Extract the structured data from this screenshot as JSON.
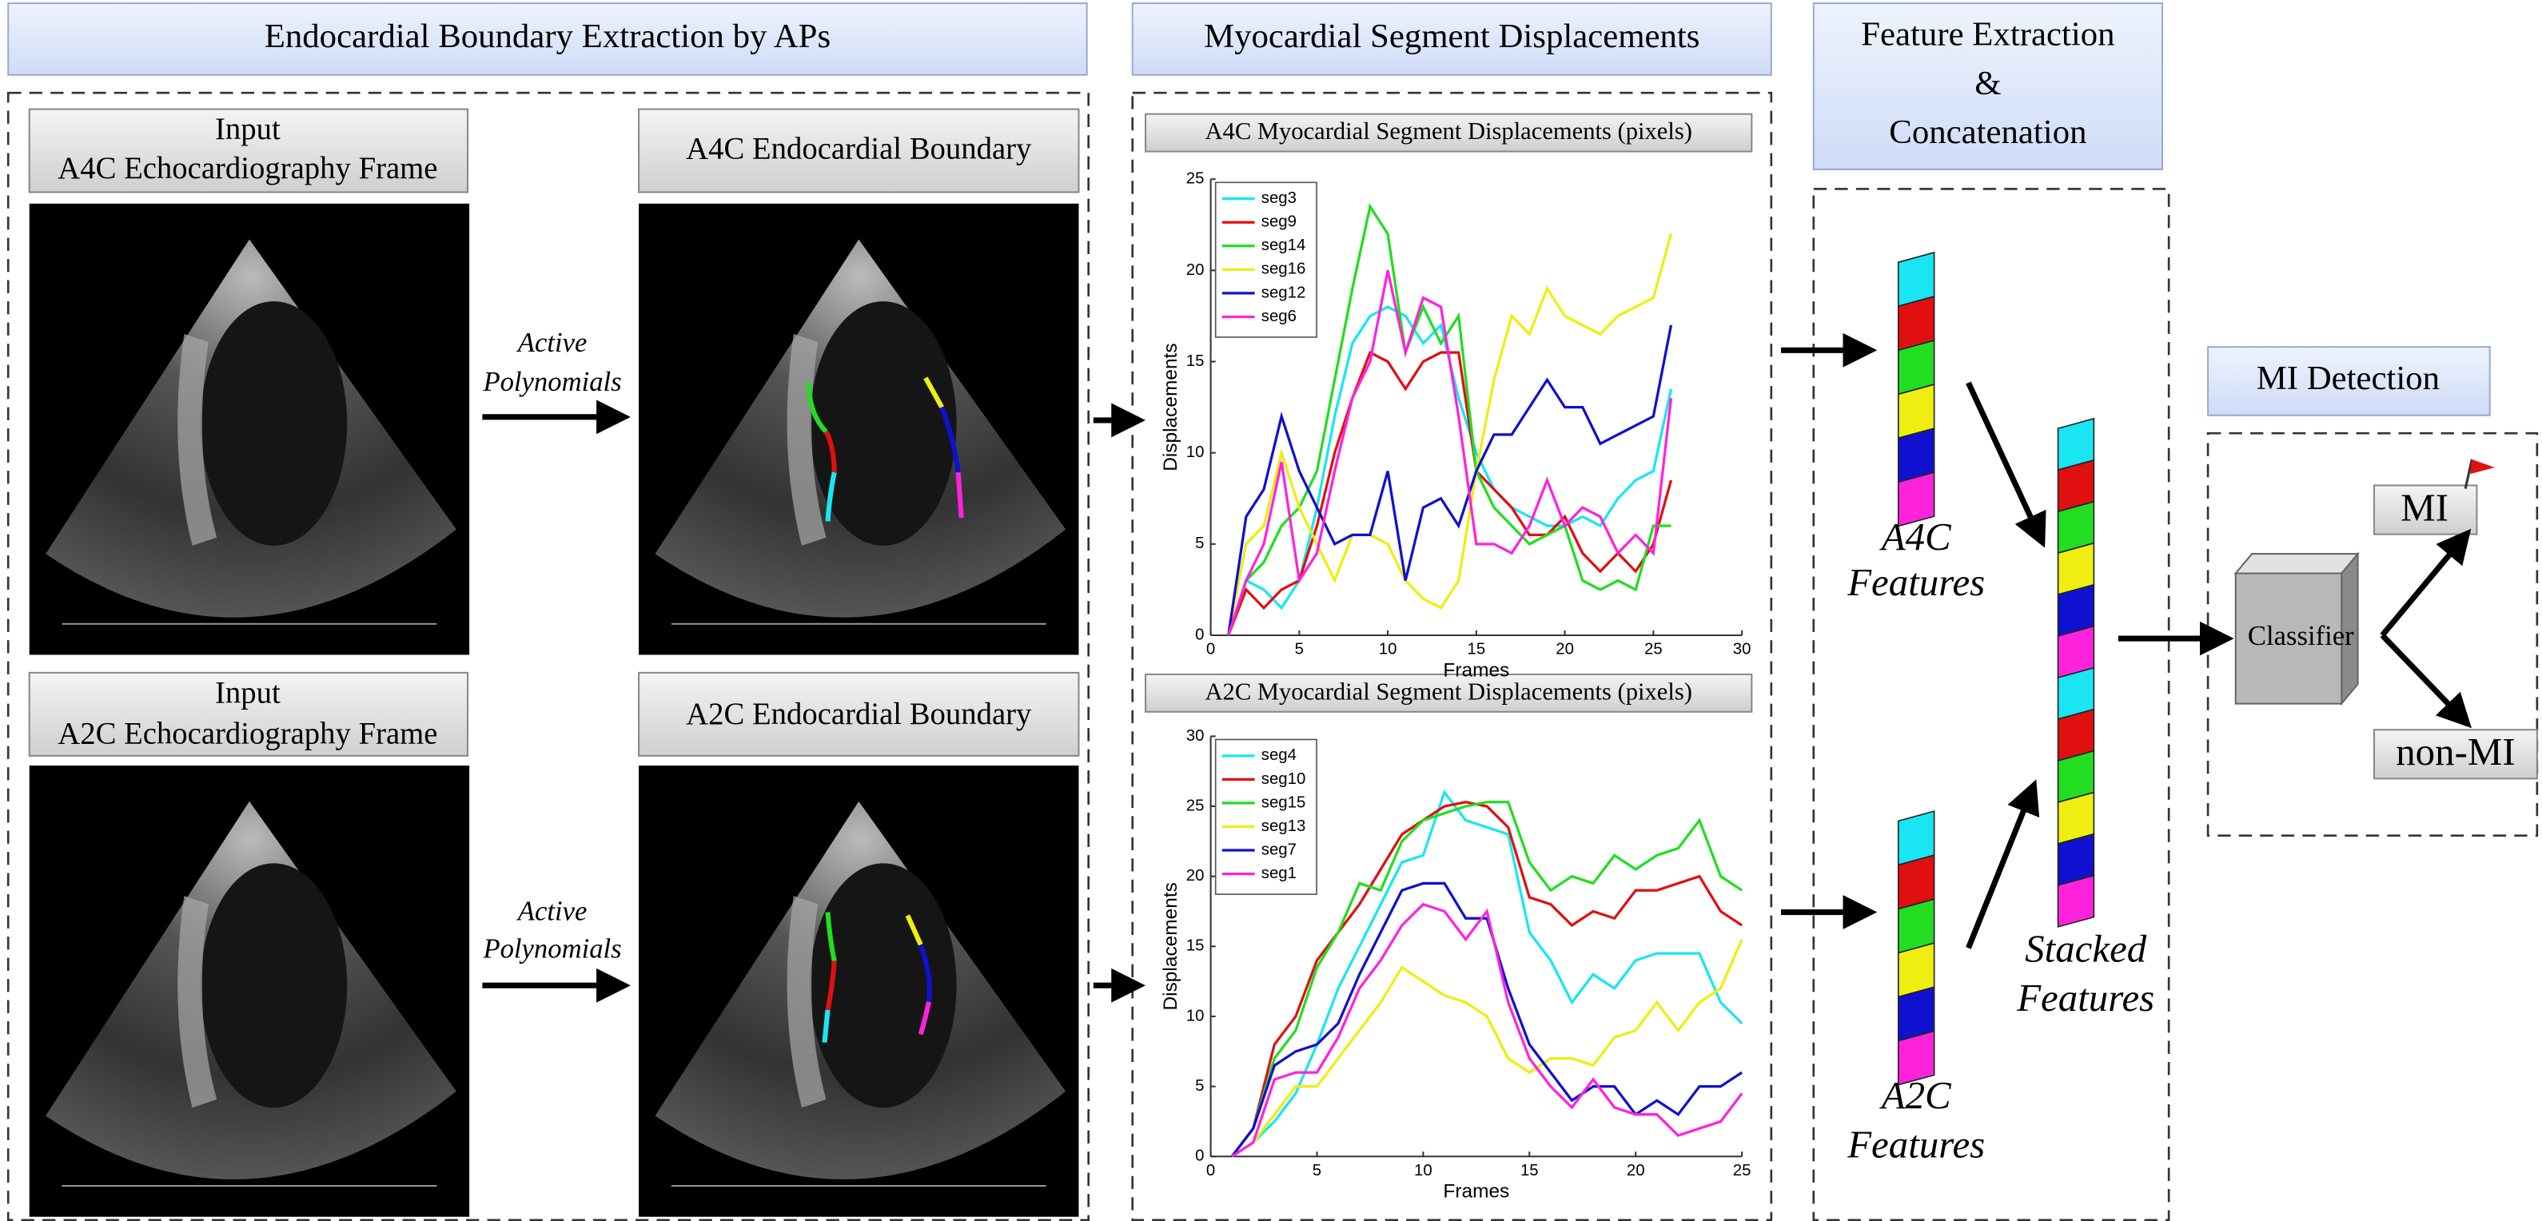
{
  "headers": {
    "boundary": "Endocardial Boundary Extraction by APs",
    "displacements": "Myocardial Segment Displacements",
    "features": [
      "Feature Extraction",
      "&",
      "Concatenation"
    ],
    "detection": "MI Detection"
  },
  "views": [
    {
      "input_label": [
        "Input",
        "A4C Echocardiography Frame"
      ],
      "boundary_label": "A4C Endocardial Boundary",
      "method": [
        "Active",
        "Polynomials"
      ],
      "features_label": [
        "A4C",
        "Features"
      ]
    },
    {
      "input_label": [
        "Input",
        "A2C Echocardiography Frame"
      ],
      "boundary_label": "A2C Endocardial Boundary",
      "method": [
        "Active",
        "Polynomials"
      ],
      "features_label": [
        "A2C",
        "Features"
      ]
    }
  ],
  "stacked_label": [
    "Stacked",
    "Features"
  ],
  "classifier": "Classifier",
  "outputs": [
    "MI",
    "non-MI"
  ],
  "charts": [
    {
      "type": "line",
      "title": "A4C Myocardial Segment Displacements (pixels)",
      "xlabel": "Frames",
      "ylabel": "Displacements",
      "x": [
        1,
        2,
        3,
        4,
        5,
        6,
        7,
        8,
        9,
        10,
        11,
        12,
        13,
        14,
        15,
        16,
        17,
        18,
        19,
        20,
        21,
        22,
        23,
        24,
        25,
        26
      ],
      "xlim": [
        0,
        30
      ],
      "xticks": [
        0,
        5,
        10,
        15,
        20,
        25,
        30
      ],
      "ylim": [
        0,
        25
      ],
      "yticks": [
        0,
        5,
        10,
        15,
        20,
        25
      ],
      "legend": "upper left",
      "series": [
        {
          "name": "seg3",
          "color": "#19e6f2",
          "values": [
            0,
            3,
            2.5,
            1.5,
            3,
            7,
            12,
            16,
            17.5,
            18,
            17.5,
            16,
            17,
            13,
            10,
            8,
            7,
            6.5,
            6,
            6,
            6.5,
            6,
            7.5,
            8.5,
            9,
            13.5
          ]
        },
        {
          "name": "seg9",
          "color": "#e01010",
          "values": [
            0,
            2.5,
            1.5,
            2.5,
            3,
            6,
            10,
            13,
            15.5,
            15,
            13.5,
            15,
            15.5,
            15.5,
            9,
            8,
            7,
            5.5,
            5.5,
            6.5,
            4.5,
            3.5,
            4.5,
            3.5,
            5,
            8.5
          ]
        },
        {
          "name": "seg14",
          "color": "#22dd22",
          "values": [
            0,
            3,
            4,
            6,
            7,
            9,
            14,
            19,
            23.5,
            22,
            15.5,
            18,
            16,
            17.5,
            9,
            7,
            6,
            5,
            5.5,
            6,
            3,
            2.5,
            3,
            2.5,
            6,
            6
          ]
        },
        {
          "name": "seg16",
          "color": "#eeee10",
          "values": [
            0,
            5,
            6,
            10,
            7,
            5,
            3,
            5.5,
            5.5,
            5,
            3,
            2,
            1.5,
            3,
            9,
            14,
            17.5,
            16.5,
            19,
            17.5,
            17,
            16.5,
            17.5,
            18,
            18.5,
            22
          ]
        },
        {
          "name": "seg12",
          "color": "#1010d0",
          "values": [
            0,
            6.5,
            8,
            12,
            9,
            7,
            5,
            5.5,
            5.5,
            9,
            3,
            7,
            7.5,
            6,
            9,
            11,
            11,
            12.5,
            14,
            12.5,
            12.5,
            10.5,
            11,
            11.5,
            12,
            17
          ]
        },
        {
          "name": "seg6",
          "color": "#ff22dd",
          "values": [
            0,
            3,
            5,
            9.5,
            3,
            4.5,
            9,
            13,
            15,
            20,
            15.5,
            18.5,
            18,
            12,
            5,
            5,
            4.5,
            6,
            8.5,
            6,
            7,
            6.5,
            4.5,
            5.5,
            4.5,
            13
          ]
        }
      ]
    },
    {
      "type": "line",
      "title": "A2C Myocardial Segment Displacements (pixels)",
      "xlabel": "Frames",
      "ylabel": "Displacements",
      "x": [
        1,
        2,
        3,
        4,
        5,
        6,
        7,
        8,
        9,
        10,
        11,
        12,
        13,
        14,
        15,
        16,
        17,
        18,
        19,
        20,
        21,
        22,
        23,
        24,
        25
      ],
      "xlim": [
        0,
        25
      ],
      "xticks": [
        0,
        5,
        10,
        15,
        20,
        25
      ],
      "ylim": [
        0,
        30
      ],
      "yticks": [
        0,
        5,
        10,
        15,
        20,
        25,
        30
      ],
      "legend": "upper left",
      "series": [
        {
          "name": "seg4",
          "color": "#19e6f2",
          "values": [
            0,
            1,
            2.5,
            4.5,
            8,
            12,
            15,
            18,
            21,
            21.5,
            26,
            24,
            23.5,
            23,
            16,
            14,
            11,
            13,
            12,
            14,
            14.5,
            14.5,
            14.5,
            11,
            9.5
          ]
        },
        {
          "name": "seg10",
          "color": "#e01010",
          "values": [
            0,
            2,
            8,
            10,
            14,
            16,
            18,
            20.5,
            23,
            24,
            25,
            25.3,
            25,
            23.5,
            18.5,
            18,
            16.5,
            17.5,
            17,
            19,
            19,
            19.5,
            20,
            17.5,
            16.5
          ]
        },
        {
          "name": "seg15",
          "color": "#22dd22",
          "values": [
            0,
            2,
            7,
            9,
            13.5,
            16,
            19.5,
            19,
            22.5,
            24,
            24.5,
            25,
            25.3,
            25.3,
            21,
            19,
            20,
            19.5,
            21.5,
            20.5,
            21.5,
            22,
            24,
            20,
            19
          ]
        },
        {
          "name": "seg13",
          "color": "#eeee10",
          "values": [
            0,
            1,
            3,
            5,
            5,
            7,
            9,
            11,
            13.5,
            12.5,
            11.5,
            11,
            10,
            7,
            6,
            7,
            7,
            6.5,
            8.5,
            9,
            11,
            9,
            11,
            12,
            15.5
          ]
        },
        {
          "name": "seg7",
          "color": "#1010d0",
          "values": [
            0,
            2,
            6.5,
            7.5,
            8,
            9.5,
            13,
            16,
            19,
            19.5,
            19.5,
            17,
            17,
            12,
            8,
            6,
            4,
            5,
            5,
            3,
            4,
            3,
            5,
            5,
            6
          ]
        },
        {
          "name": "seg1",
          "color": "#ff22dd",
          "values": [
            0,
            1,
            5.5,
            6,
            6,
            8.5,
            12,
            14,
            16.5,
            18,
            17.5,
            15.5,
            17.5,
            11,
            7,
            5,
            3.5,
            5.5,
            3.5,
            3,
            3,
            1.5,
            2,
            2.5,
            4.5
          ]
        }
      ]
    }
  ]
}
